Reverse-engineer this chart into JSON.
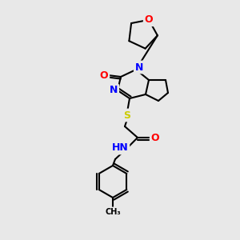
{
  "bg_color": "#e8e8e8",
  "atom_colors": {
    "O": "#ff0000",
    "N": "#0000ff",
    "S": "#cccc00",
    "C": "#000000",
    "H": "#808080"
  },
  "bond_color": "#000000",
  "line_width": 1.5,
  "font_size_atom": 9
}
